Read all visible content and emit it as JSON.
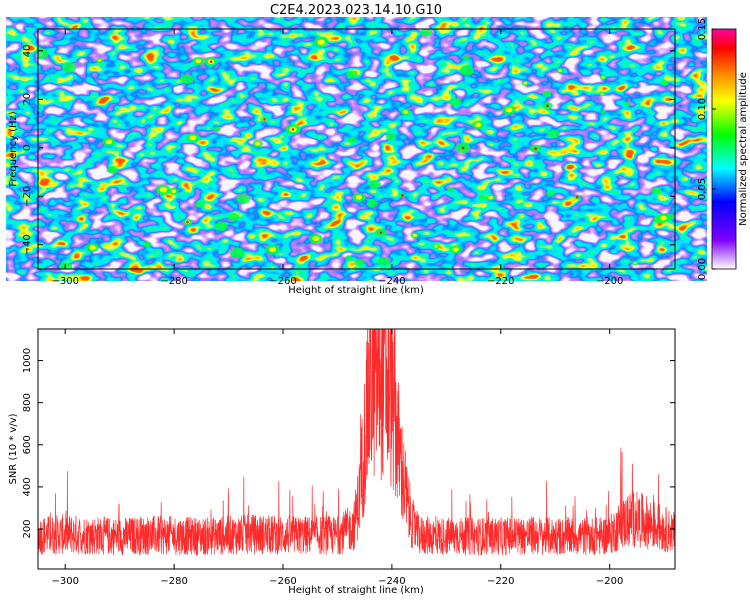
{
  "title": "C2E4.2023.023.14.10.G10",
  "chart_data": [
    {
      "type": "heatmap",
      "xlabel": "Height of straight line (km)",
      "ylabel": "Frequency (Hz)",
      "xlim": [
        -305,
        -188
      ],
      "ylim": [
        -50,
        49
      ],
      "xticks": [
        -300,
        -280,
        -260,
        -240,
        -220,
        -200
      ],
      "yticks": [
        -40,
        -20,
        0,
        20,
        40
      ],
      "colorbar": {
        "label": "Normalized spectral amplitude",
        "range": [
          0,
          0.15
        ],
        "ticks": [
          "0.00",
          "0.05",
          "0.10",
          "0.15"
        ],
        "colormap": [
          "#ffffff",
          "#8000ff",
          "#0000ff",
          "#00ffff",
          "#00ff00",
          "#ffff00",
          "#ff8000",
          "#ff0000",
          "#ff00a0"
        ]
      }
    },
    {
      "type": "line",
      "xlabel": "Height of straight line (km)",
      "ylabel": "SNR (10 * v/v)",
      "xlim": [
        -305,
        -188
      ],
      "ylim": [
        10,
        1150
      ],
      "xticks": [
        -300,
        -280,
        -260,
        -240,
        -220,
        -200
      ],
      "yticks": [
        200,
        400,
        600,
        800,
        1000
      ],
      "color": "#ff2a2a",
      "series": [
        {
          "x": [
            -305,
            -300,
            -295,
            -290,
            -285,
            -280,
            -275,
            -270,
            -265,
            -260,
            -255,
            -250,
            -247,
            -246,
            -245,
            -244,
            -243,
            -242,
            -241,
            -240,
            -239,
            -238,
            -237,
            -236,
            -235,
            -230,
            -225,
            -220,
            -215,
            -210,
            -205,
            -200,
            -198,
            -196,
            -194,
            -192,
            -190,
            -188
          ],
          "values": [
            170,
            175,
            170,
            165,
            170,
            170,
            165,
            170,
            175,
            170,
            170,
            170,
            210,
            350,
            620,
            870,
            940,
            950,
            900,
            820,
            640,
            450,
            300,
            210,
            170,
            165,
            165,
            165,
            170,
            165,
            165,
            170,
            220,
            250,
            240,
            220,
            200,
            180
          ]
        }
      ]
    }
  ]
}
